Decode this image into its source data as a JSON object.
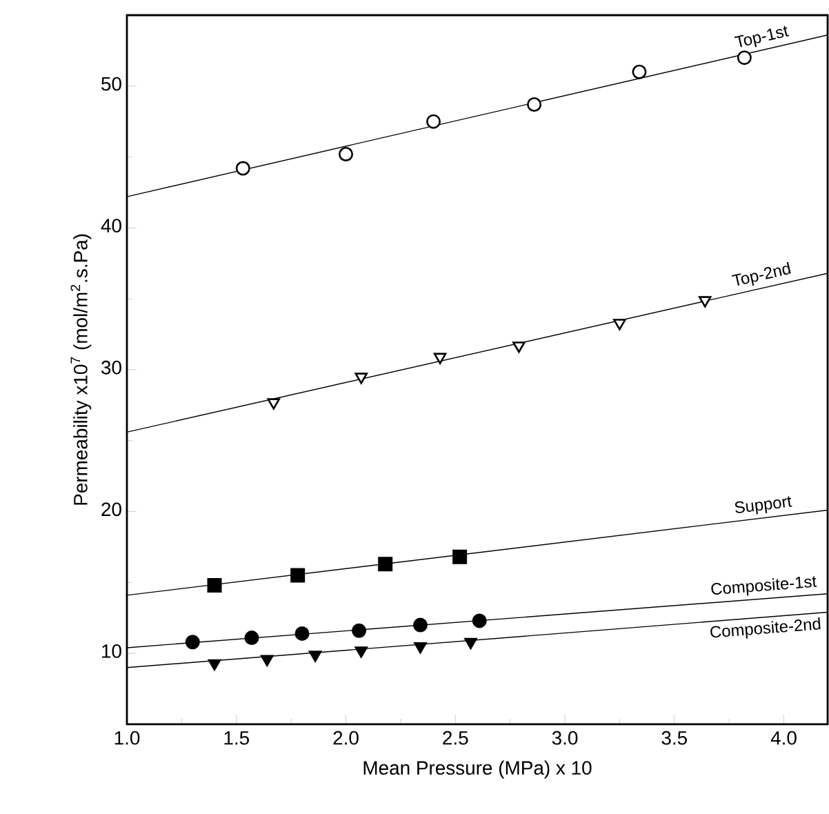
{
  "chart_data": {
    "type": "scatter",
    "xlabel": "Mean Pressure (MPa) x 10",
    "ylabel": "Permeability x10$^{7}$ (mol/m$^{2}$.s.Pa)",
    "xlim": [
      1.0,
      4.2
    ],
    "ylim": [
      5,
      55
    ],
    "xticks": [
      {
        "value": 1.0,
        "label": "1.0"
      },
      1.5,
      {
        "value": 2.0,
        "label": "2.0"
      },
      2.5,
      {
        "value": 3.0,
        "label": "3.0"
      },
      3.5,
      {
        "value": 4.0,
        "label": "4.0"
      }
    ],
    "yticks": [
      10,
      20,
      30,
      40,
      50
    ],
    "grid": false,
    "series": [
      {
        "marker": "circle-open",
        "color": "#000000",
        "x": [
          1.53,
          2.0,
          2.4,
          2.86,
          3.34,
          3.82
        ],
        "values": [
          44.2,
          45.2,
          47.5,
          48.7,
          51.0,
          52.0
        ]
      },
      {
        "type": "line",
        "name": "Top-1st",
        "color": "#000000",
        "x": [
          1.0,
          4.2
        ],
        "values": [
          42.2,
          53.6
        ]
      },
      {
        "marker": "triangle-down-open",
        "color": "#000000",
        "x": [
          1.67,
          2.07,
          2.43,
          2.79,
          3.25,
          3.64
        ],
        "values": [
          27.7,
          29.5,
          30.9,
          31.7,
          33.3,
          34.9
        ]
      },
      {
        "type": "line",
        "name": "Top-2nd",
        "color": "#000000",
        "x": [
          1.0,
          4.2
        ],
        "values": [
          25.6,
          36.8
        ]
      },
      {
        "marker": "square",
        "color": "#000000",
        "x": [
          1.4,
          1.78,
          2.18,
          2.52
        ],
        "values": [
          14.8,
          15.5,
          16.3,
          16.8
        ]
      },
      {
        "type": "line",
        "name": "Support",
        "color": "#000000",
        "x": [
          1.0,
          4.2
        ],
        "values": [
          14.1,
          20.1
        ]
      },
      {
        "marker": "circle",
        "color": "#000000",
        "x": [
          1.3,
          1.57,
          1.8,
          2.06,
          2.34,
          2.61
        ],
        "values": [
          10.8,
          11.1,
          11.4,
          11.6,
          12.0,
          12.3
        ]
      },
      {
        "type": "line",
        "name": "Composite-1st",
        "color": "#000000",
        "x": [
          1.0,
          4.2
        ],
        "values": [
          10.4,
          14.2
        ]
      },
      {
        "marker": "triangle-down",
        "color": "#000000",
        "x": [
          1.4,
          1.64,
          1.86,
          2.07,
          2.34,
          2.57
        ],
        "values": [
          9.3,
          9.6,
          9.9,
          10.2,
          10.5,
          10.8
        ]
      },
      {
        "type": "line",
        "name": "Composite-2nd",
        "color": "#000000",
        "x": [
          1.0,
          4.2
        ],
        "values": [
          9.0,
          12.9
        ]
      }
    ]
  }
}
